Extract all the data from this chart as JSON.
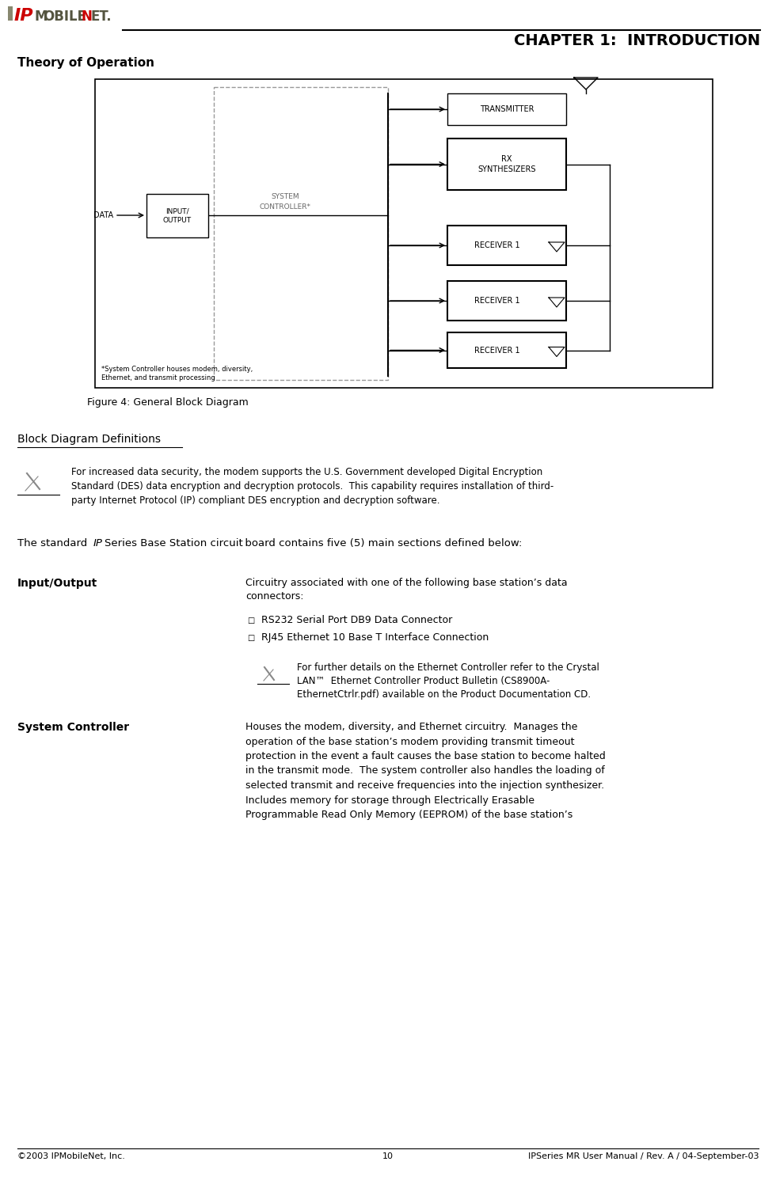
{
  "bg_color": "#ffffff",
  "page_width": 9.8,
  "page_height": 15.01,
  "chapter_title": "CHAPTER 1:  INTRODUCTION",
  "section_title": "Theory of Operation",
  "figure_caption": "Figure 4: General Block Diagram",
  "section2_title": "Block Diagram Definitions",
  "note_text1": "For increased data security, the modem supports the U.S. Government developed Digital Encryption\nStandard (DES) data encryption and decryption protocols.  This capability requires installation of third-\nparty Internet Protocol (IP) compliant DES encryption and decryption software.",
  "body_text1_a": "The standard ",
  "body_text1_b": "IP",
  "body_text1_c": "Series Base Station circuit board contains five (5) main sections defined below:",
  "term1": "Input/Output",
  "def1_a": "Circuitry associated with one of the following base station’s data",
  "def1_b": "connectors:",
  "bullet1": "RS232 Serial Port DB9 Data Connector",
  "bullet2": "RJ45 Ethernet 10 Base T Interface Connection",
  "note_text2_a": "For further details on the Ethernet Controller refer to the Crystal",
  "note_text2_b": "LAN™  Ethernet Controller Product Bulletin (CS8900A-",
  "note_text2_c": "EthernetCtrlr.pdf) available on the Product Documentation CD.",
  "term2": "System Controller",
  "def2": "Houses the modem, diversity, and Ethernet circuitry.  Manages the\noperation of the base station’s modem providing transmit timeout\nprotection in the event a fault causes the base station to become halted\nin the transmit mode.  The system controller also handles the loading of\nselected transmit and receive frequencies into the injection synthesizer.\nIncludes memory for storage through Electrically Erasable\nProgrammable Read Only Memory (EEPROM) of the base station’s",
  "footer_left": "©2003 IPMobileNet, Inc.",
  "footer_center": "10",
  "footer_right": "IPSeries MR User Manual / Rev. A / 04-September-03",
  "diagram_footnote": "*System Controller houses modem, diversity,\nEthernet, and transmit processing"
}
